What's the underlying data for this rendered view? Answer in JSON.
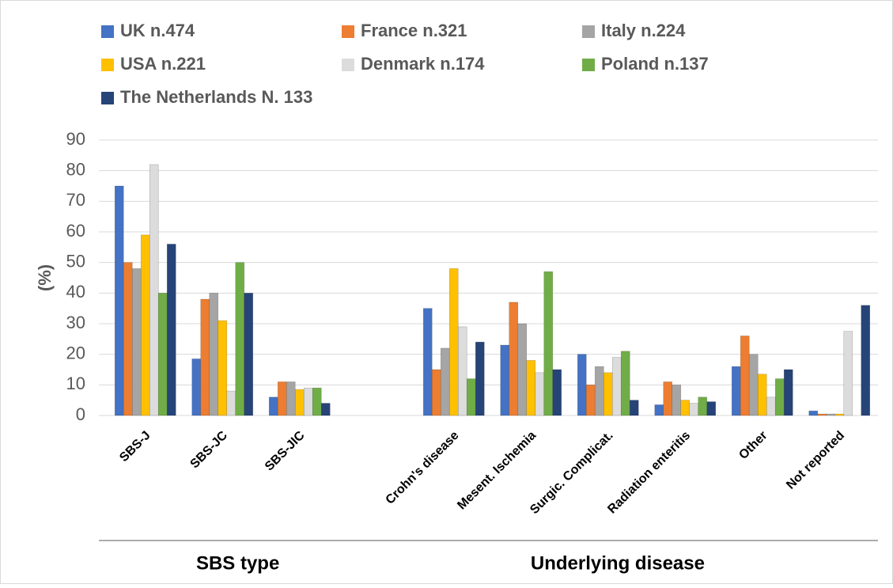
{
  "chart_data": {
    "type": "bar",
    "y_label": "(%)",
    "categories": [
      "SBS-J",
      "SBS-JC",
      "SBS-JIC",
      null,
      "Crohn's disease",
      "Mesent. Ischemia",
      "Surgic. Complicat.",
      "Radiation enteritis",
      "Other",
      "Not reported"
    ],
    "category_groups": [
      "SBS type",
      "Underlying disease"
    ],
    "series": [
      {
        "name": "UK n.474",
        "color": "#4472c4",
        "values": [
          75,
          18.5,
          6,
          null,
          35,
          23,
          20,
          3.5,
          16,
          1.5
        ]
      },
      {
        "name": "France n.321",
        "color": "#ed7d31",
        "values": [
          50,
          38,
          11,
          null,
          15,
          37,
          10,
          11,
          26,
          0.5
        ]
      },
      {
        "name": "Italy n.224",
        "color": "#a5a5a5",
        "values": [
          48,
          40,
          11,
          null,
          22,
          30,
          16,
          10,
          20,
          0.5
        ]
      },
      {
        "name": "USA n.221",
        "color": "#ffc000",
        "values": [
          59,
          31,
          8.5,
          null,
          48,
          18,
          14,
          5,
          13.5,
          0.5
        ]
      },
      {
        "name": "Denmark n.174",
        "color": "#dcdcdc",
        "values": [
          82,
          8,
          9,
          null,
          29,
          14,
          19,
          4,
          6,
          27.5
        ]
      },
      {
        "name": "Poland n.137",
        "color": "#70ad47",
        "values": [
          40,
          50,
          9,
          null,
          12,
          47,
          21,
          6,
          12,
          0
        ]
      },
      {
        "name": "The Netherlands N. 133",
        "color": "#264478",
        "values": [
          56,
          40,
          4,
          null,
          24,
          15,
          5,
          4.5,
          15,
          36
        ]
      }
    ],
    "ylim": [
      0,
      90
    ],
    "yticks": [
      0,
      10,
      20,
      30,
      40,
      50,
      60,
      70,
      80,
      90
    ],
    "grid": true
  }
}
